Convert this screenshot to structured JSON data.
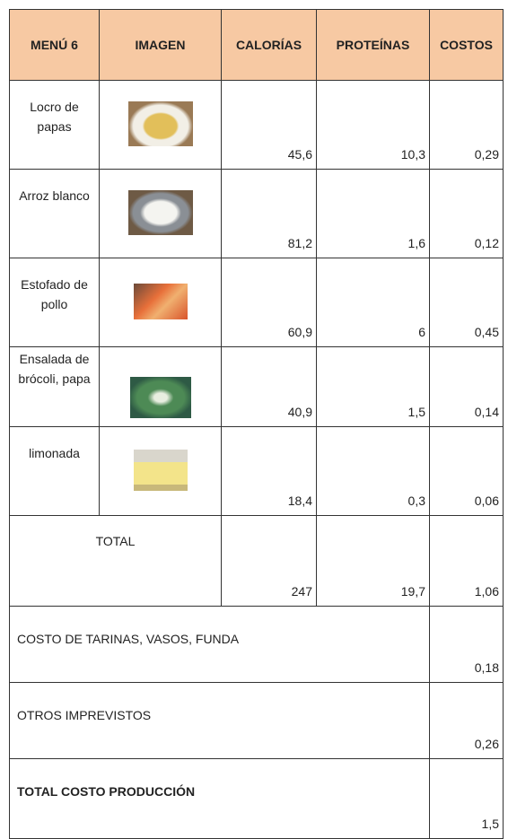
{
  "table": {
    "header": [
      "MENÚ 6",
      "IMAGEN",
      "CALORÍAS",
      "PROTEÍNAS",
      "COSTOS"
    ],
    "rows": [
      [
        "Locro de papas",
        "45,6",
        "10,3",
        "0,29"
      ],
      [
        "Arroz blanco",
        "81,2",
        "1,6",
        "0,12"
      ],
      [
        "Estofado de pollo",
        "60,9",
        "6",
        "0,45"
      ],
      [
        "Ensalada de brócoli, papa",
        "40,9",
        "1,5",
        "0,14"
      ],
      [
        "limonada",
        "18,4",
        "0,3",
        "0,06"
      ]
    ],
    "total": {
      "label": "TOTAL",
      "values": [
        "247",
        "19,7",
        "1,06"
      ]
    },
    "extras": [
      {
        "label": "COSTO DE TARINAS, VASOS, FUNDA",
        "value": "0,18"
      },
      {
        "label": "OTROS IMPREVISTOS",
        "value": "0,26"
      },
      {
        "label": "TOTAL COSTO PRODUCCIÓN",
        "value": "1,5"
      }
    ]
  }
}
